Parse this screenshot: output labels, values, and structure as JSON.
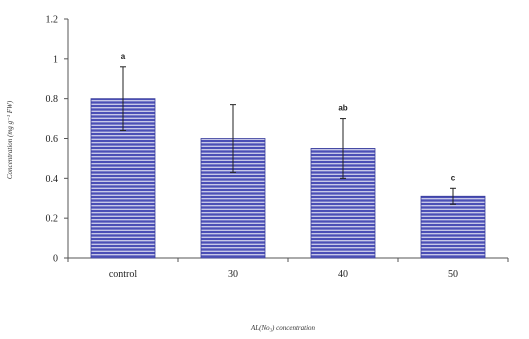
{
  "chart_data": {
    "type": "bar",
    "title": "",
    "categories": [
      "control",
      "30",
      "40",
      "50"
    ],
    "values": [
      0.8,
      0.6,
      0.55,
      0.31
    ],
    "errors": [
      0.16,
      0.17,
      0.15,
      0.04
    ],
    "data_labels": [
      "a",
      "",
      "ab",
      "c"
    ],
    "xlabel": "AL(No₃) concentration",
    "ylabel": "Concentration (mg g⁻¹ FW)",
    "ylim": [
      0,
      1.2
    ],
    "yticks": [
      0,
      0.2,
      0.4,
      0.6,
      0.8,
      1,
      1.2
    ],
    "ytick_labels": [
      "0",
      "0.2",
      "0.4",
      "0.6",
      "0.8",
      "1",
      "1.2"
    ],
    "grid": false,
    "legend": "none",
    "colors": {
      "bar_fill": "#4b4fb6",
      "bar_stripe": "#ffffff",
      "axis": "#555555"
    }
  }
}
